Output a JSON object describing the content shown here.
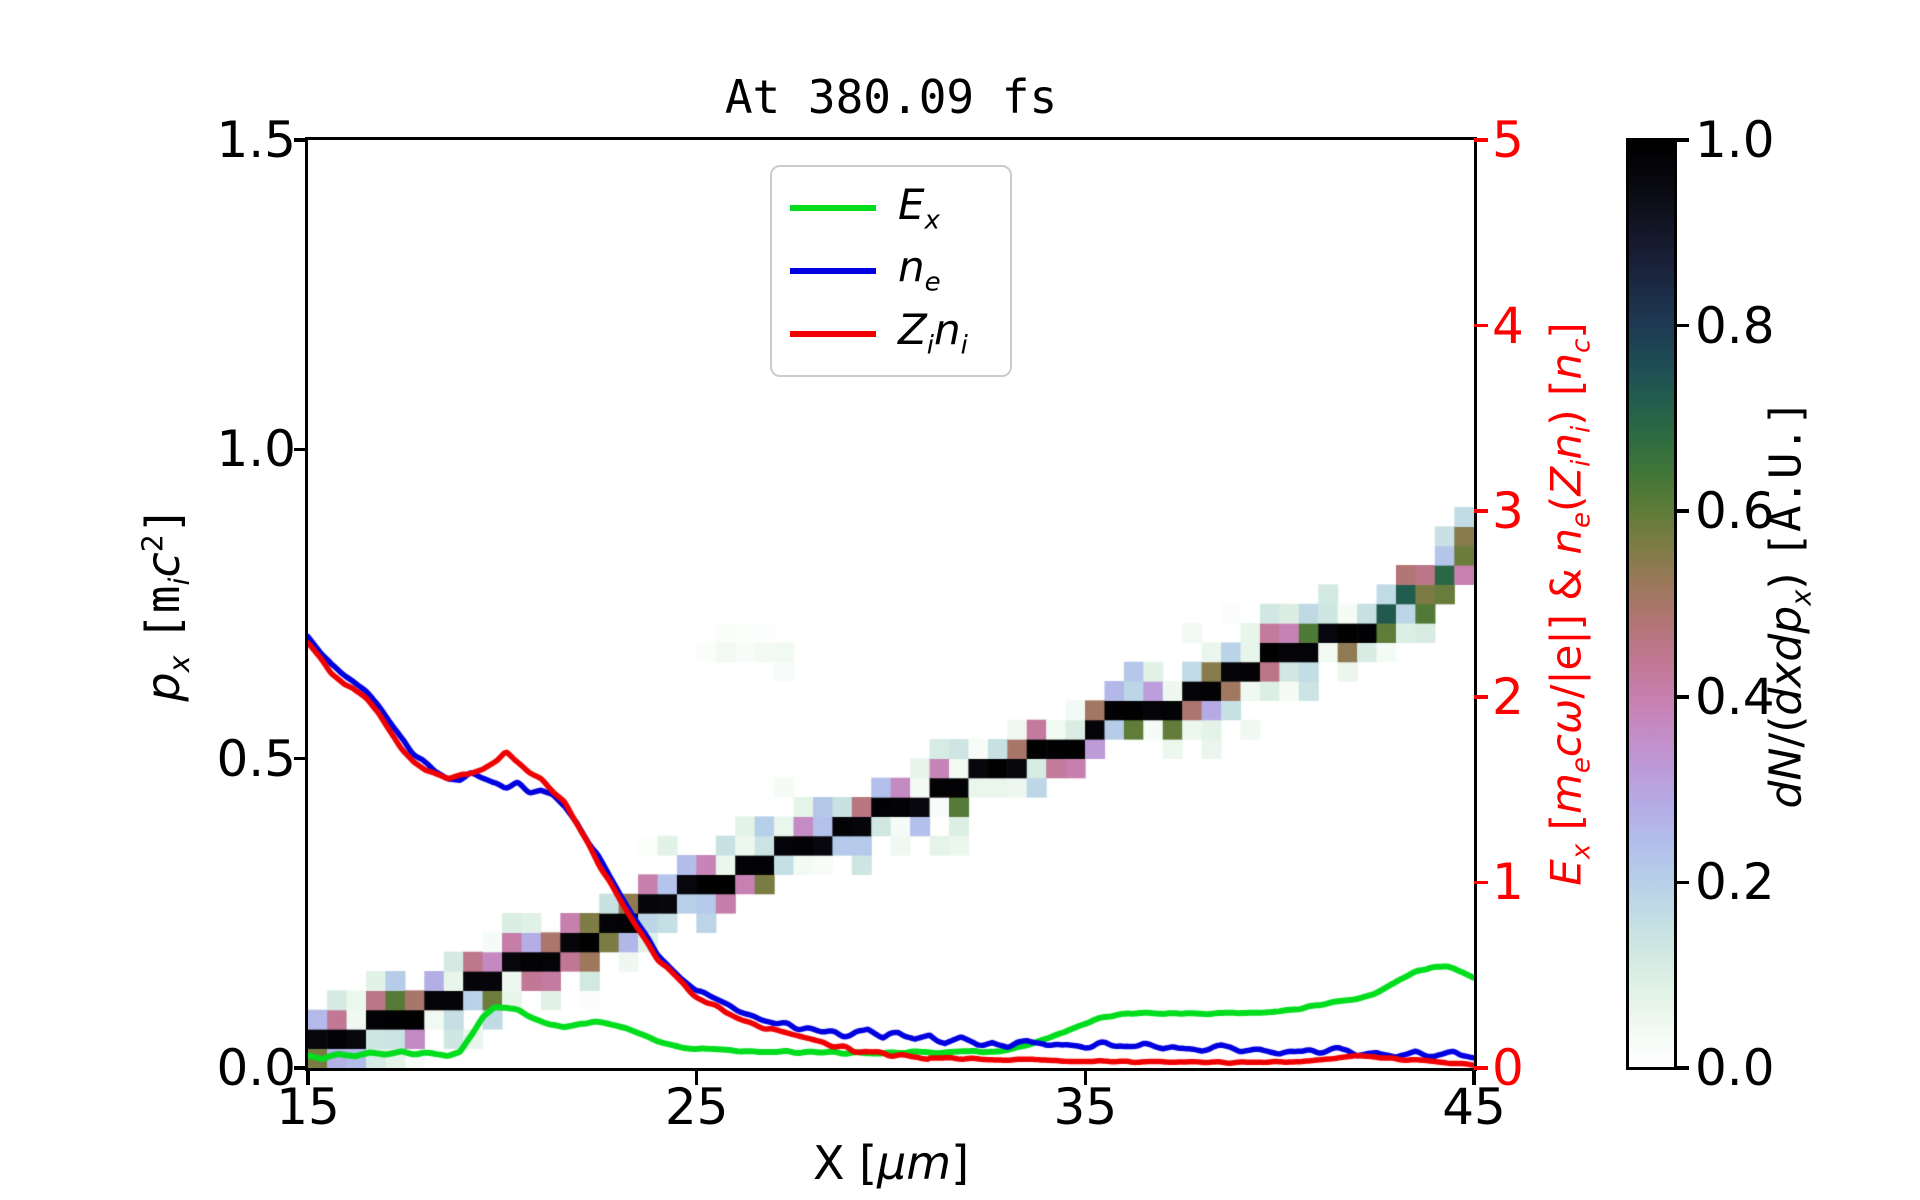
{
  "title": "At 380.09 fs",
  "labels": {
    "y_left": [
      {
        "t": "p",
        "i": 1
      },
      {
        "t": "x",
        "i": 1,
        "b": 1
      },
      {
        "t": " "
      },
      {
        "t": "[",
        "m": 1
      },
      {
        "t": "m",
        "m": 1
      },
      {
        "t": "i",
        "i": 1,
        "b": 1
      },
      {
        "t": "c",
        "i": 1
      },
      {
        "t": "2",
        "p": 1
      },
      {
        "t": "]",
        "m": 1
      }
    ],
    "x": [
      {
        "t": "X ["
      },
      {
        "t": "μm",
        "i": 1
      },
      {
        "t": "]"
      }
    ],
    "y_right": [
      {
        "t": "E",
        "i": 1
      },
      {
        "t": "x",
        "i": 1,
        "b": 1
      },
      {
        "t": " ["
      },
      {
        "t": "m",
        "i": 1
      },
      {
        "t": "e",
        "i": 1,
        "b": 1
      },
      {
        "t": "c",
        "i": 1
      },
      {
        "t": "ω",
        "i": 1
      },
      {
        "t": "/|e|] & "
      },
      {
        "t": "n",
        "i": 1
      },
      {
        "t": "e",
        "i": 1,
        "b": 1
      },
      {
        "t": "("
      },
      {
        "t": "Z",
        "i": 1
      },
      {
        "t": "i",
        "i": 1,
        "b": 1
      },
      {
        "t": "n",
        "i": 1
      },
      {
        "t": "i",
        "i": 1,
        "b": 1
      },
      {
        "t": ") ["
      },
      {
        "t": "n",
        "i": 1
      },
      {
        "t": "c",
        "i": 1,
        "b": 1
      },
      {
        "t": "]"
      }
    ],
    "colorbar": [
      {
        "t": "dN",
        "i": 1
      },
      {
        "t": "/(",
        "m": 0
      },
      {
        "t": "dxdp",
        "i": 1
      },
      {
        "t": "x",
        "i": 1,
        "b": 1
      },
      {
        "t": ") "
      },
      {
        "t": "[A.U.]",
        "m": 1
      }
    ]
  },
  "legend": {
    "items": [
      {
        "name": "Ex",
        "color": "#00dd1d",
        "label": [
          {
            "t": "E",
            "i": 1
          },
          {
            "t": "x",
            "i": 1,
            "b": 1
          }
        ]
      },
      {
        "name": "ne",
        "color": "#0000e0",
        "label": [
          {
            "t": "n",
            "i": 1
          },
          {
            "t": "e",
            "i": 1,
            "b": 1
          }
        ]
      },
      {
        "name": "Zini",
        "color": "#f00000",
        "label": [
          {
            "t": "Z",
            "i": 1
          },
          {
            "t": "i",
            "i": 1,
            "b": 1
          },
          {
            "t": "n",
            "i": 1
          },
          {
            "t": "i",
            "i": 1,
            "b": 1
          }
        ]
      }
    ]
  },
  "chart_data": {
    "type": "heatmap+line",
    "title": "At 380.09 fs",
    "x_axis": {
      "label": "X [um]",
      "range": [
        15,
        45
      ],
      "ticks": [
        {
          "value": 15,
          "label": "15"
        },
        {
          "value": 25,
          "label": "25"
        },
        {
          "value": 35,
          "label": "35"
        },
        {
          "value": 45,
          "label": "45"
        }
      ]
    },
    "y_left_axis": {
      "label": "px [mi c^2]",
      "range": [
        0,
        1.5
      ],
      "ticks": [
        {
          "value": 0,
          "label": "0.0"
        },
        {
          "value": 0.5,
          "label": "0.5"
        },
        {
          "value": 1.0,
          "label": "1.0"
        },
        {
          "value": 1.5,
          "label": "1.5"
        }
      ],
      "color": "#000000"
    },
    "y_right_axis": {
      "label": "Ex [me c w/|e|] & ne(Zi ni) [nc]",
      "range": [
        0,
        5
      ],
      "ticks": [
        {
          "value": 0,
          "label": "0"
        },
        {
          "value": 1,
          "label": "1"
        },
        {
          "value": 2,
          "label": "2"
        },
        {
          "value": 3,
          "label": "3"
        },
        {
          "value": 4,
          "label": "4"
        },
        {
          "value": 5,
          "label": "5"
        }
      ],
      "color": "#ff0000"
    },
    "colorbar": {
      "label": "dN/(dxdpx) [A.U.]",
      "range": [
        0,
        1
      ],
      "ticks": [
        {
          "value": 0.0,
          "label": "0.0"
        },
        {
          "value": 0.2,
          "label": "0.2"
        },
        {
          "value": 0.4,
          "label": "0.4"
        },
        {
          "value": 0.6,
          "label": "0.6"
        },
        {
          "value": 0.8,
          "label": "0.8"
        },
        {
          "value": 1.0,
          "label": "1.0"
        }
      ],
      "stops": [
        [
          0.0,
          "#ffffff"
        ],
        [
          0.04,
          "#f2faf3"
        ],
        [
          0.08,
          "#e2f2e6"
        ],
        [
          0.12,
          "#d2e9e2"
        ],
        [
          0.16,
          "#c3dee4"
        ],
        [
          0.2,
          "#b7cfe9"
        ],
        [
          0.24,
          "#b2bfeb"
        ],
        [
          0.28,
          "#b4ade6"
        ],
        [
          0.32,
          "#bc9bd9"
        ],
        [
          0.36,
          "#c48cc6"
        ],
        [
          0.4,
          "#c77fae"
        ],
        [
          0.44,
          "#c17792"
        ],
        [
          0.48,
          "#b27575"
        ],
        [
          0.52,
          "#9c785b"
        ],
        [
          0.56,
          "#7f7c46"
        ],
        [
          0.6,
          "#5f7c38"
        ],
        [
          0.64,
          "#427637"
        ],
        [
          0.68,
          "#2d6c41"
        ],
        [
          0.72,
          "#225d4e"
        ],
        [
          0.76,
          "#1e4c55"
        ],
        [
          0.8,
          "#1e3a52"
        ],
        [
          0.84,
          "#1c2a45"
        ],
        [
          0.88,
          "#171d33"
        ],
        [
          0.92,
          "#10121f"
        ],
        [
          0.96,
          "#07070d"
        ],
        [
          1.0,
          "#000000"
        ]
      ]
    },
    "heatmap_band": {
      "comment": "phase-space density ridge: px(X), cell 0.5um x 0.03125",
      "cell_x_um": 0.5,
      "cell_p": 0.03125,
      "cols": 60,
      "rows": 48,
      "path": [
        [
          15,
          0.025
        ],
        [
          18,
          0.1
        ],
        [
          21,
          0.18
        ],
        [
          24,
          0.26
        ],
        [
          27,
          0.34
        ],
        [
          30,
          0.415
        ],
        [
          33,
          0.49
        ],
        [
          36,
          0.565
        ],
        [
          39,
          0.64
        ],
        [
          42,
          0.715
        ],
        [
          45,
          0.82
        ]
      ],
      "diffuse_after_x": 42.7,
      "faint_blob": {
        "x_range": [
          24.9,
          27.6
        ],
        "p_center": 0.665,
        "value_range": [
          0.01,
          0.05
        ]
      }
    },
    "series": [
      {
        "name": "Ex",
        "axis": "right",
        "color": "#00dd1d",
        "linewidth": 6,
        "points": [
          [
            15,
            0.07
          ],
          [
            15.4,
            0.05
          ],
          [
            15.8,
            0.075
          ],
          [
            16.2,
            0.06
          ],
          [
            16.6,
            0.08
          ],
          [
            17,
            0.07
          ],
          [
            17.4,
            0.085
          ],
          [
            17.8,
            0.075
          ],
          [
            18.2,
            0.08
          ],
          [
            18.6,
            0.07
          ],
          [
            18.9,
            0.09
          ],
          [
            19.2,
            0.17
          ],
          [
            19.5,
            0.27
          ],
          [
            19.8,
            0.325
          ],
          [
            20.1,
            0.33
          ],
          [
            20.4,
            0.31
          ],
          [
            20.8,
            0.27
          ],
          [
            21.2,
            0.235
          ],
          [
            21.6,
            0.22
          ],
          [
            22,
            0.24
          ],
          [
            22.3,
            0.25
          ],
          [
            22.7,
            0.235
          ],
          [
            23.2,
            0.21
          ],
          [
            23.7,
            0.17
          ],
          [
            24.2,
            0.135
          ],
          [
            24.7,
            0.11
          ],
          [
            25.2,
            0.1
          ],
          [
            26,
            0.09
          ],
          [
            27,
            0.088
          ],
          [
            28,
            0.085
          ],
          [
            29,
            0.08
          ],
          [
            30,
            0.078
          ],
          [
            30.6,
            0.085
          ],
          [
            31.2,
            0.082
          ],
          [
            32,
            0.088
          ],
          [
            32.8,
            0.095
          ],
          [
            33.4,
            0.115
          ],
          [
            34,
            0.155
          ],
          [
            34.6,
            0.21
          ],
          [
            35.2,
            0.26
          ],
          [
            35.8,
            0.285
          ],
          [
            36.4,
            0.295
          ],
          [
            37,
            0.29
          ],
          [
            37.6,
            0.3
          ],
          [
            38.2,
            0.29
          ],
          [
            38.8,
            0.295
          ],
          [
            39.4,
            0.3
          ],
          [
            40,
            0.31
          ],
          [
            40.6,
            0.325
          ],
          [
            41.2,
            0.345
          ],
          [
            41.8,
            0.365
          ],
          [
            42.4,
            0.4
          ],
          [
            43,
            0.47
          ],
          [
            43.5,
            0.52
          ],
          [
            43.9,
            0.545
          ],
          [
            44.3,
            0.545
          ],
          [
            44.7,
            0.52
          ],
          [
            45,
            0.49
          ]
        ]
      },
      {
        "name": "ne",
        "axis": "right",
        "color": "#0000e0",
        "linewidth": 5.5,
        "points": [
          [
            15,
            2.33
          ],
          [
            15.3,
            2.25
          ],
          [
            15.6,
            2.17
          ],
          [
            15.9,
            2.12
          ],
          [
            16.2,
            2.07
          ],
          [
            16.5,
            2.02
          ],
          [
            16.8,
            1.95
          ],
          [
            17.1,
            1.86
          ],
          [
            17.4,
            1.77
          ],
          [
            17.7,
            1.7
          ],
          [
            18,
            1.64
          ],
          [
            18.3,
            1.6
          ],
          [
            18.6,
            1.57
          ],
          [
            18.9,
            1.56
          ],
          [
            19.2,
            1.58
          ],
          [
            19.5,
            1.55
          ],
          [
            19.8,
            1.53
          ],
          [
            20.1,
            1.52
          ],
          [
            20.4,
            1.53
          ],
          [
            20.7,
            1.49
          ],
          [
            21,
            1.5
          ],
          [
            21.3,
            1.47
          ],
          [
            21.6,
            1.41
          ],
          [
            21.9,
            1.33
          ],
          [
            22.2,
            1.23
          ],
          [
            22.5,
            1.12
          ],
          [
            22.8,
            1.01
          ],
          [
            23.1,
            0.9
          ],
          [
            23.4,
            0.8
          ],
          [
            23.7,
            0.71
          ],
          [
            24,
            0.62
          ],
          [
            24.3,
            0.55
          ],
          [
            24.6,
            0.49
          ],
          [
            25,
            0.42
          ],
          [
            25.4,
            0.37
          ],
          [
            25.8,
            0.33
          ],
          [
            26.2,
            0.295
          ],
          [
            26.6,
            0.27
          ],
          [
            27,
            0.245
          ],
          [
            27.5,
            0.225
          ],
          [
            28,
            0.205
          ],
          [
            28.5,
            0.185
          ],
          [
            29,
            0.175
          ],
          [
            29.4,
            0.21
          ],
          [
            29.8,
            0.16
          ],
          [
            30.2,
            0.19
          ],
          [
            30.6,
            0.145
          ],
          [
            31,
            0.175
          ],
          [
            31.4,
            0.13
          ],
          [
            31.8,
            0.16
          ],
          [
            32.2,
            0.125
          ],
          [
            32.6,
            0.15
          ],
          [
            33,
            0.12
          ],
          [
            33.5,
            0.145
          ],
          [
            34,
            0.115
          ],
          [
            34.5,
            0.135
          ],
          [
            35,
            0.12
          ],
          [
            35.5,
            0.135
          ],
          [
            36,
            0.105
          ],
          [
            36.5,
            0.125
          ],
          [
            37,
            0.1
          ],
          [
            37.5,
            0.12
          ],
          [
            38,
            0.095
          ],
          [
            38.5,
            0.115
          ],
          [
            39,
            0.09
          ],
          [
            39.5,
            0.11
          ],
          [
            40,
            0.085
          ],
          [
            40.5,
            0.105
          ],
          [
            41,
            0.08
          ],
          [
            41.5,
            0.1
          ],
          [
            42,
            0.075
          ],
          [
            42.5,
            0.095
          ],
          [
            43,
            0.07
          ],
          [
            43.5,
            0.09
          ],
          [
            44,
            0.065
          ],
          [
            44.5,
            0.085
          ],
          [
            45,
            0.065
          ]
        ]
      },
      {
        "name": "Zini",
        "axis": "right",
        "color": "#f00000",
        "linewidth": 5.5,
        "points": [
          [
            15,
            2.28
          ],
          [
            15.3,
            2.21
          ],
          [
            15.6,
            2.13
          ],
          [
            15.9,
            2.08
          ],
          [
            16.2,
            2.03
          ],
          [
            16.5,
            1.98
          ],
          [
            16.8,
            1.91
          ],
          [
            17.1,
            1.82
          ],
          [
            17.4,
            1.73
          ],
          [
            17.7,
            1.66
          ],
          [
            18,
            1.61
          ],
          [
            18.3,
            1.58
          ],
          [
            18.6,
            1.56
          ],
          [
            18.9,
            1.57
          ],
          [
            19.2,
            1.6
          ],
          [
            19.5,
            1.62
          ],
          [
            19.8,
            1.66
          ],
          [
            20.1,
            1.69
          ],
          [
            20.4,
            1.65
          ],
          [
            20.7,
            1.6
          ],
          [
            21,
            1.56
          ],
          [
            21.3,
            1.5
          ],
          [
            21.6,
            1.43
          ],
          [
            21.9,
            1.33
          ],
          [
            22.2,
            1.22
          ],
          [
            22.5,
            1.1
          ],
          [
            22.8,
            0.985
          ],
          [
            23.1,
            0.875
          ],
          [
            23.4,
            0.775
          ],
          [
            23.7,
            0.68
          ],
          [
            24,
            0.59
          ],
          [
            24.3,
            0.52
          ],
          [
            24.6,
            0.455
          ],
          [
            25,
            0.385
          ],
          [
            25.4,
            0.335
          ],
          [
            25.8,
            0.295
          ],
          [
            26.2,
            0.26
          ],
          [
            26.6,
            0.23
          ],
          [
            27,
            0.2
          ],
          [
            27.5,
            0.17
          ],
          [
            28,
            0.145
          ],
          [
            28.5,
            0.12
          ],
          [
            29,
            0.1
          ],
          [
            29.5,
            0.085
          ],
          [
            30,
            0.072
          ],
          [
            30.5,
            0.063
          ],
          [
            31,
            0.057
          ],
          [
            31.5,
            0.052
          ],
          [
            32,
            0.05
          ],
          [
            33,
            0.045
          ],
          [
            34,
            0.042
          ],
          [
            35,
            0.038
          ],
          [
            36,
            0.033
          ],
          [
            37,
            0.032
          ],
          [
            38,
            0.032
          ],
          [
            39,
            0.03
          ],
          [
            40,
            0.032
          ],
          [
            40.8,
            0.038
          ],
          [
            41.5,
            0.055
          ],
          [
            42,
            0.062
          ],
          [
            42.5,
            0.058
          ],
          [
            43,
            0.048
          ],
          [
            43.7,
            0.038
          ],
          [
            44.3,
            0.028
          ],
          [
            45,
            0.018
          ]
        ]
      }
    ]
  }
}
